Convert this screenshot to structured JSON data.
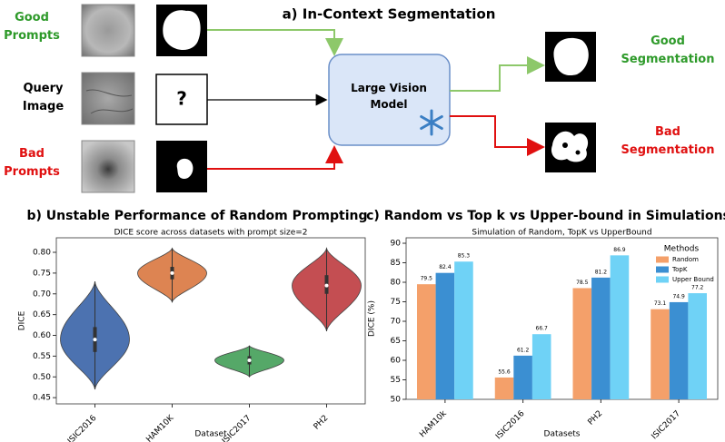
{
  "diagram": {
    "title": "a) In-Context Segmentation",
    "good_prompts": "Good Prompts",
    "query_image": "Query Image",
    "bad_prompts": "Bad Prompts",
    "query_mark": "?",
    "model": "Large Vision Model",
    "good_output": "Good Segmentation",
    "bad_output": "Bad Segmentation"
  },
  "chart_data": [
    {
      "type": "violin",
      "title": "b) Unstable Performance of Random Prompting",
      "subtitle": "DICE score across datasets with prompt size=2",
      "x_label": "Dataset",
      "y_label": "DICE",
      "categories": [
        "ISIC2016",
        "HAM10K",
        "ISIC2017",
        "PH2"
      ],
      "colors": [
        "#4c72b0",
        "#dd8452",
        "#55a868",
        "#c44e52"
      ],
      "stats": [
        {
          "min": 0.47,
          "q1": 0.56,
          "median": 0.59,
          "q3": 0.62,
          "max": 0.73
        },
        {
          "min": 0.68,
          "q1": 0.735,
          "median": 0.75,
          "q3": 0.765,
          "max": 0.81
        },
        {
          "min": 0.5,
          "q1": 0.53,
          "median": 0.54,
          "q3": 0.55,
          "max": 0.575
        },
        {
          "min": 0.61,
          "q1": 0.7,
          "median": 0.72,
          "q3": 0.745,
          "max": 0.81
        }
      ],
      "ylim": [
        0.435,
        0.835
      ],
      "yticks": [
        0.45,
        {
          "value": 0.5,
          "label": "0.50"
        },
        0.55,
        {
          "value": 0.6,
          "label": "0.60"
        },
        0.65,
        {
          "value": 0.7,
          "label": "0.70"
        },
        0.75,
        {
          "value": 0.8,
          "label": "0.80"
        }
      ]
    },
    {
      "type": "bar",
      "title": "c) Random vs Top k vs Upper-bound in Simulations",
      "subtitle": "Simulation of Random, TopK vs UpperBound",
      "x_label": "Datasets",
      "y_label": "DICE (%)",
      "legend_title": "Methods",
      "legend_position": "upper right",
      "categories": [
        "HAM10k",
        "ISIC2016",
        "PH2",
        "ISIC2017"
      ],
      "series": [
        {
          "name": "Random",
          "color": "#f4a06a",
          "values": [
            79.5,
            55.6,
            78.5,
            73.1
          ]
        },
        {
          "name": "TopK",
          "color": "#3b8fd2",
          "values": [
            82.4,
            61.2,
            81.2,
            74.9
          ]
        },
        {
          "name": "Upper Bound",
          "color": "#6fd2f6",
          "values": [
            85.3,
            66.7,
            86.9,
            77.2
          ]
        }
      ],
      "ylim": [
        50,
        91.4
      ],
      "yticks": [
        50,
        55,
        60,
        65,
        70,
        75,
        80,
        85,
        90
      ]
    }
  ]
}
